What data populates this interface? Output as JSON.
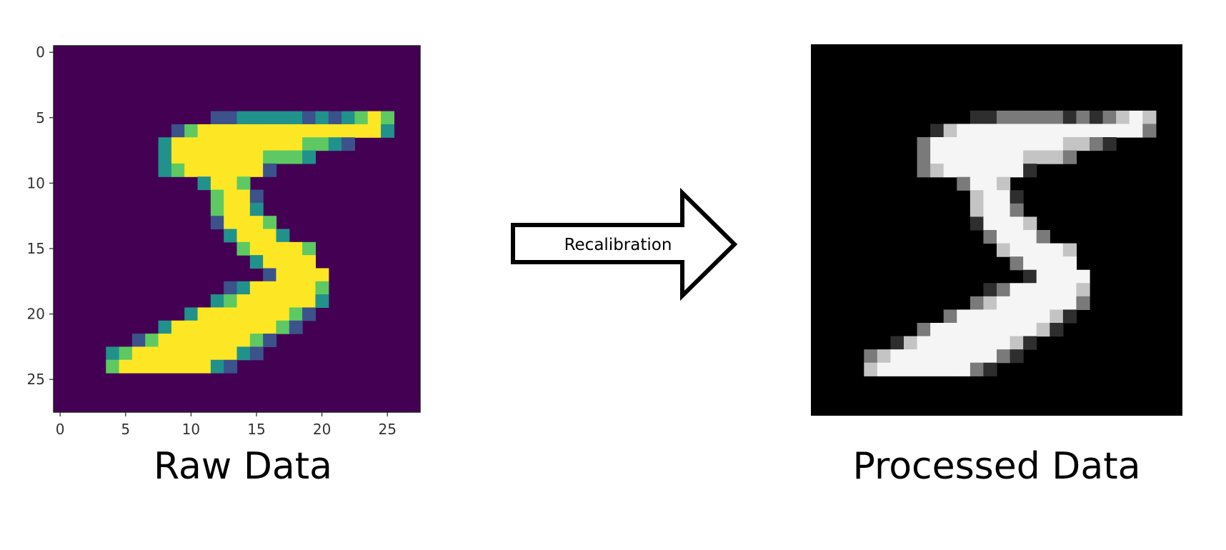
{
  "raw_panel": {
    "caption": "Raw Data",
    "y_ticks": [
      "0",
      "5",
      "10",
      "15",
      "20",
      "25"
    ],
    "x_ticks": [
      "0",
      "5",
      "10",
      "15",
      "20",
      "25"
    ],
    "background_color": "#440154",
    "colormap": [
      "#440154",
      "#3b528b",
      "#21918c",
      "#5ec962",
      "#fde725"
    ]
  },
  "arrow": {
    "label": "Recalibration"
  },
  "processed_panel": {
    "caption": "Processed Data",
    "background_color": "#000000",
    "colormap": [
      "#000000",
      "#ffffff"
    ]
  },
  "digit": {
    "rows": [
      "0000000000000000000000000000",
      "0000000000000000000000000000",
      "0000000000000000000000000000",
      "0000000000000000000000000000",
      "0000000000000000000000000000",
      "0000000000001122222121234300",
      "0000000001344444444444444200",
      "0000000024444444444332100000",
      "0000000024444444333200000000",
      "0000000023444444100000000000",
      "0000000000024430000000000000",
      "0000000000003441000000000000",
      "0000000000003442000000000000",
      "0000000000001444300000000000",
      "0000000000000244420000000000",
      "0000000000000034444300000000",
      "0000000000000002444400000000",
      "0000000000000000144440000000",
      "0000000000000124444430000000",
      "0000000000002344444420000000",
      "0000000000244444443100000000",
      "0000000024444444431000000000",
      "0000001344444443100000000000",
      "0000234444444421000000000000",
      "0000344444442100000000000000",
      "0000000000000000000000000000",
      "0000000000000000000000000000",
      "0000000000000000000000000000"
    ]
  }
}
